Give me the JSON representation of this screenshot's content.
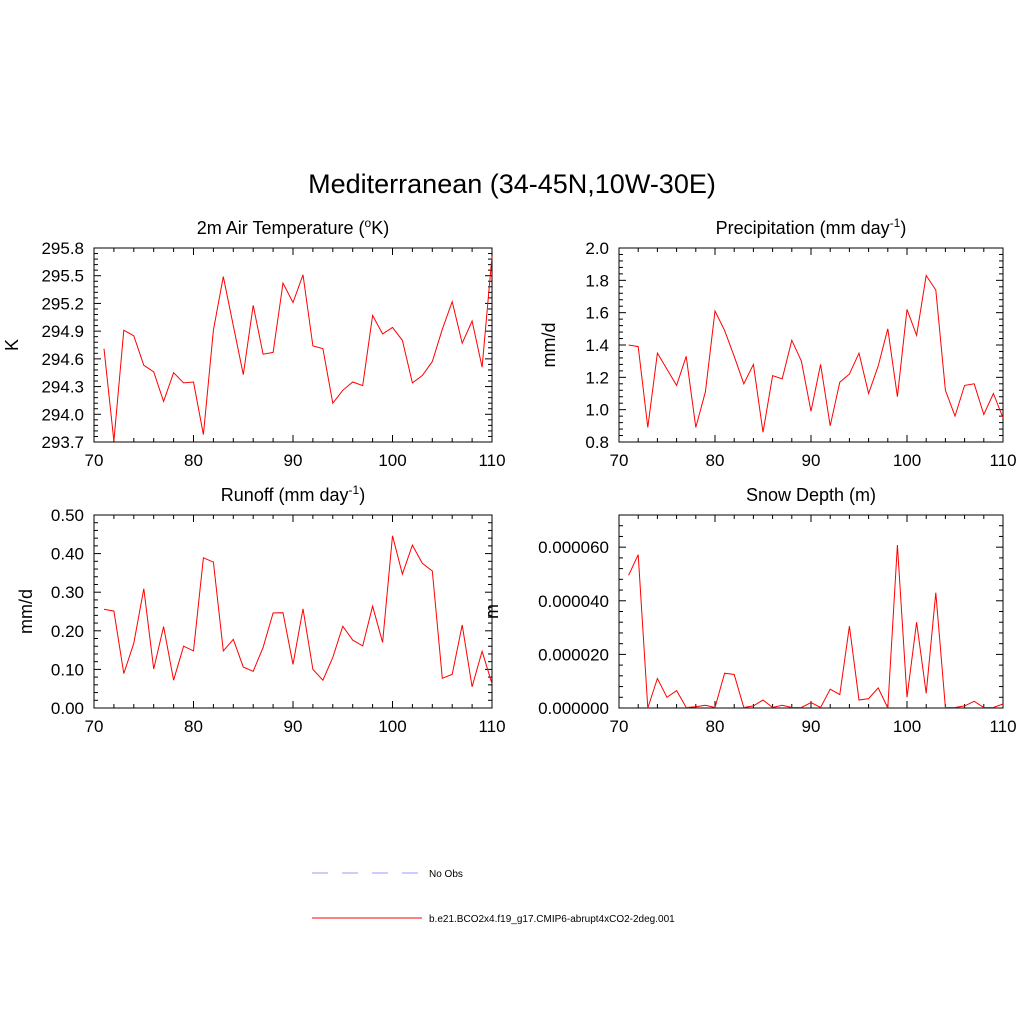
{
  "title": "Mediterranean (34-45N,10W-30E)",
  "colors": {
    "model": "#ff0000",
    "obs": "#9999ff"
  },
  "legend": [
    {
      "label": "No Obs",
      "style": "dashed",
      "color": "#9999ff"
    },
    {
      "label": "b.e21.BCO2x4.f19_g17.CMIP6-abrupt4xCO2-2deg.001",
      "style": "solid",
      "color": "#ff0000"
    }
  ],
  "chart_data": [
    {
      "type": "line",
      "title": "2m Air Temperature (",
      "title_sup": "o",
      "title_post": "K)",
      "ylabel": "K",
      "xlim": [
        70,
        110
      ],
      "ylim": [
        293.7,
        295.8
      ],
      "xticks": [
        70,
        80,
        90,
        100,
        110
      ],
      "xtick_labels": [
        "70",
        "80",
        "90",
        "100",
        "110"
      ],
      "yticks": [
        293.7,
        294.0,
        294.3,
        294.6,
        294.9,
        295.2,
        295.5,
        295.8
      ],
      "ytick_labels": [
        "293.7",
        "294.0",
        "294.3",
        "294.6",
        "294.9",
        "295.2",
        "295.5",
        "295.8"
      ],
      "series": [
        {
          "name": "b.e21.BCO2x4.f19_g17.CMIP6-abrupt4xCO2-2deg.001",
          "x": [
            71,
            72,
            73,
            74,
            75,
            76,
            77,
            78,
            79,
            80,
            81,
            82,
            83,
            84,
            85,
            86,
            87,
            88,
            89,
            90,
            91,
            92,
            93,
            94,
            95,
            96,
            97,
            98,
            99,
            100,
            101,
            102,
            103,
            104,
            105,
            106,
            107,
            108,
            109,
            110
          ],
          "values": [
            294.71,
            293.71,
            294.91,
            294.85,
            294.53,
            294.46,
            294.14,
            294.45,
            294.34,
            294.35,
            293.78,
            294.91,
            295.49,
            294.96,
            294.43,
            295.18,
            294.65,
            294.67,
            295.42,
            295.21,
            295.51,
            294.74,
            294.71,
            294.12,
            294.26,
            294.35,
            294.31,
            295.07,
            294.87,
            294.94,
            294.8,
            294.34,
            294.42,
            294.57,
            294.92,
            295.22,
            294.77,
            295.01,
            294.51,
            295.71
          ]
        }
      ]
    },
    {
      "type": "line",
      "title": "Precipitation (mm day",
      "title_sup": "-1",
      "title_post": ")",
      "ylabel": "mm/d",
      "xlim": [
        70,
        110
      ],
      "ylim": [
        0.8,
        2.0
      ],
      "xticks": [
        70,
        80,
        90,
        100,
        110
      ],
      "xtick_labels": [
        "70",
        "80",
        "90",
        "100",
        "110"
      ],
      "yticks": [
        0.8,
        1.0,
        1.2,
        1.4,
        1.6,
        1.8,
        2.0
      ],
      "ytick_labels": [
        "0.8",
        "1.0",
        "1.2",
        "1.4",
        "1.6",
        "1.8",
        "2.0"
      ],
      "series": [
        {
          "name": "b.e21.BCO2x4.f19_g17.CMIP6-abrupt4xCO2-2deg.001",
          "x": [
            71,
            72,
            73,
            74,
            75,
            76,
            77,
            78,
            79,
            80,
            81,
            82,
            83,
            84,
            85,
            86,
            87,
            88,
            89,
            90,
            91,
            92,
            93,
            94,
            95,
            96,
            97,
            98,
            99,
            100,
            101,
            102,
            103,
            104,
            105,
            106,
            107,
            108,
            109,
            110
          ],
          "values": [
            1.4,
            1.39,
            0.89,
            1.35,
            1.25,
            1.15,
            1.33,
            0.89,
            1.11,
            1.61,
            1.49,
            1.33,
            1.16,
            1.28,
            0.86,
            1.21,
            1.19,
            1.43,
            1.3,
            0.99,
            1.28,
            0.9,
            1.17,
            1.22,
            1.35,
            1.1,
            1.27,
            1.5,
            1.08,
            1.62,
            1.46,
            1.83,
            1.74,
            1.12,
            0.96,
            1.15,
            1.16,
            0.97,
            1.1,
            0.95
          ]
        }
      ]
    },
    {
      "type": "line",
      "title": "Runoff (mm day",
      "title_sup": "-1",
      "title_post": ")",
      "ylabel": "mm/d",
      "xlim": [
        70,
        110
      ],
      "ylim": [
        0.0,
        0.5
      ],
      "xticks": [
        70,
        80,
        90,
        100,
        110
      ],
      "xtick_labels": [
        "70",
        "80",
        "90",
        "100",
        "110"
      ],
      "yticks": [
        0.0,
        0.1,
        0.2,
        0.3,
        0.4,
        0.5
      ],
      "ytick_labels": [
        "0.00",
        "0.10",
        "0.20",
        "0.30",
        "0.40",
        "0.50"
      ],
      "series": [
        {
          "name": "b.e21.BCO2x4.f19_g17.CMIP6-abrupt4xCO2-2deg.001",
          "x": [
            71,
            72,
            73,
            74,
            75,
            76,
            77,
            78,
            79,
            80,
            81,
            82,
            83,
            84,
            85,
            86,
            87,
            88,
            89,
            90,
            91,
            92,
            93,
            94,
            95,
            96,
            97,
            98,
            99,
            100,
            101,
            102,
            103,
            104,
            105,
            106,
            107,
            108,
            109,
            110
          ],
          "values": [
            0.256,
            0.251,
            0.089,
            0.168,
            0.309,
            0.101,
            0.211,
            0.072,
            0.16,
            0.148,
            0.389,
            0.378,
            0.148,
            0.178,
            0.106,
            0.095,
            0.157,
            0.246,
            0.247,
            0.113,
            0.257,
            0.1,
            0.072,
            0.131,
            0.212,
            0.176,
            0.161,
            0.264,
            0.17,
            0.446,
            0.347,
            0.422,
            0.375,
            0.355,
            0.077,
            0.087,
            0.215,
            0.055,
            0.147,
            0.063
          ]
        }
      ]
    },
    {
      "type": "line",
      "title": "Snow Depth (m)",
      "title_sup": "",
      "title_post": "",
      "ylabel": "m",
      "xlim": [
        70,
        110
      ],
      "ylim": [
        0.0,
        7.2e-05
      ],
      "xticks": [
        70,
        80,
        90,
        100,
        110
      ],
      "xtick_labels": [
        "70",
        "80",
        "90",
        "100",
        "110"
      ],
      "yticks": [
        0.0,
        2e-05,
        4e-05,
        6e-05
      ],
      "ytick_labels": [
        "0.000000",
        "0.000020",
        "0.000040",
        "0.000060"
      ],
      "series": [
        {
          "name": "b.e21.BCO2x4.f19_g17.CMIP6-abrupt4xCO2-2deg.001",
          "x": [
            71,
            72,
            73,
            74,
            75,
            76,
            77,
            78,
            79,
            80,
            81,
            82,
            83,
            84,
            85,
            86,
            87,
            88,
            89,
            90,
            91,
            92,
            93,
            94,
            95,
            96,
            97,
            98,
            99,
            100,
            101,
            102,
            103,
            104,
            105,
            106,
            107,
            108,
            109,
            110
          ],
          "values": [
            4.95e-05,
            5.72e-05,
            0.0,
            1.1e-05,
            4e-06,
            6.5e-06,
            2e-07,
            5e-07,
            1e-06,
            2e-07,
            1.3e-05,
            1.25e-05,
            2e-07,
            8e-07,
            3e-06,
            2e-07,
            1e-06,
            2e-07,
            2e-07,
            2e-06,
            2e-07,
            7e-06,
            5e-06,
            3.05e-05,
            3e-06,
            3.5e-06,
            7.5e-06,
            0.0,
            6.08e-05,
            4e-06,
            3.2e-05,
            5.5e-06,
            4.3e-05,
            2e-07,
            2e-07,
            8e-07,
            2.5e-06,
            2e-07,
            2e-07,
            1.5e-06
          ]
        }
      ]
    }
  ]
}
